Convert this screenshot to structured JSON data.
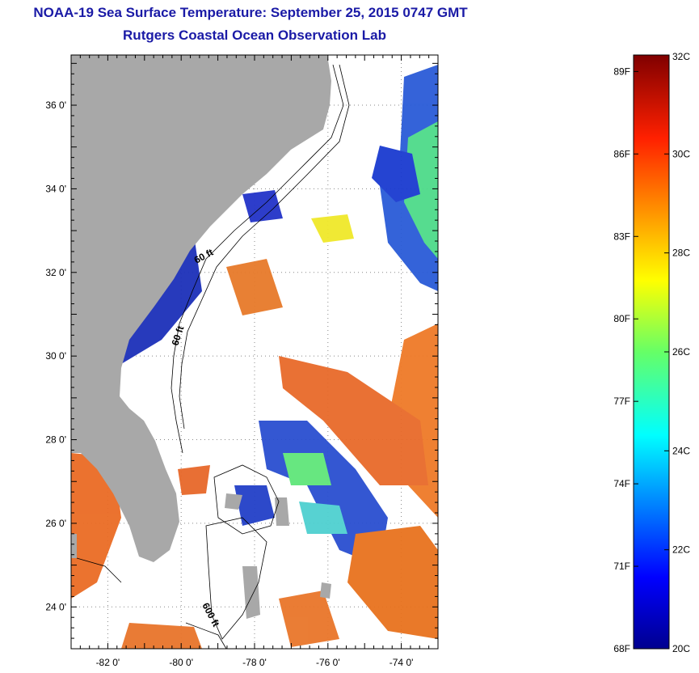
{
  "header": {
    "title": "NOAA-19 Sea Surface Temperature:  September 25, 2015 0747 GMT",
    "subtitle": "Rutgers Coastal Ocean Observation Lab"
  },
  "map": {
    "lat_range": [
      23.0,
      37.2
    ],
    "lon_range": [
      -83.0,
      -73.0
    ],
    "lat_ticks": [
      {
        "value": 36,
        "label": "36 0'"
      },
      {
        "value": 34,
        "label": "34 0'"
      },
      {
        "value": 32,
        "label": "32 0'"
      },
      {
        "value": 30,
        "label": "30 0'"
      },
      {
        "value": 28,
        "label": "28 0'"
      },
      {
        "value": 26,
        "label": "26 0'"
      },
      {
        "value": 24,
        "label": "24 0'"
      }
    ],
    "lon_ticks": [
      {
        "value": -82,
        "label": "-82 0'"
      },
      {
        "value": -80,
        "label": "-80 0'"
      },
      {
        "value": -78,
        "label": "-78 0'"
      },
      {
        "value": -76,
        "label": "-76 0'"
      },
      {
        "value": -74,
        "label": "-74 0'"
      }
    ],
    "contour_labels": [
      "60 ft",
      "60 ft",
      "600 ft"
    ],
    "land_color": "#a8a8a8"
  },
  "colorbar": {
    "min_c": 20,
    "max_c": 32,
    "celsius_labels": [
      {
        "value": 32,
        "label": "32C"
      },
      {
        "value": 30,
        "label": "30C"
      },
      {
        "value": 28,
        "label": "28C"
      },
      {
        "value": 26,
        "label": "26C"
      },
      {
        "value": 24,
        "label": "24C"
      },
      {
        "value": 22,
        "label": "22C"
      },
      {
        "value": 20,
        "label": "20C"
      }
    ],
    "fahrenheit_labels": [
      {
        "value": 89,
        "label": "89F"
      },
      {
        "value": 86,
        "label": "86F"
      },
      {
        "value": 83,
        "label": "83F"
      },
      {
        "value": 80,
        "label": "80F"
      },
      {
        "value": 77,
        "label": "77F"
      },
      {
        "value": 74,
        "label": "74F"
      },
      {
        "value": 71,
        "label": "71F"
      },
      {
        "value": 68,
        "label": "68F"
      }
    ]
  }
}
